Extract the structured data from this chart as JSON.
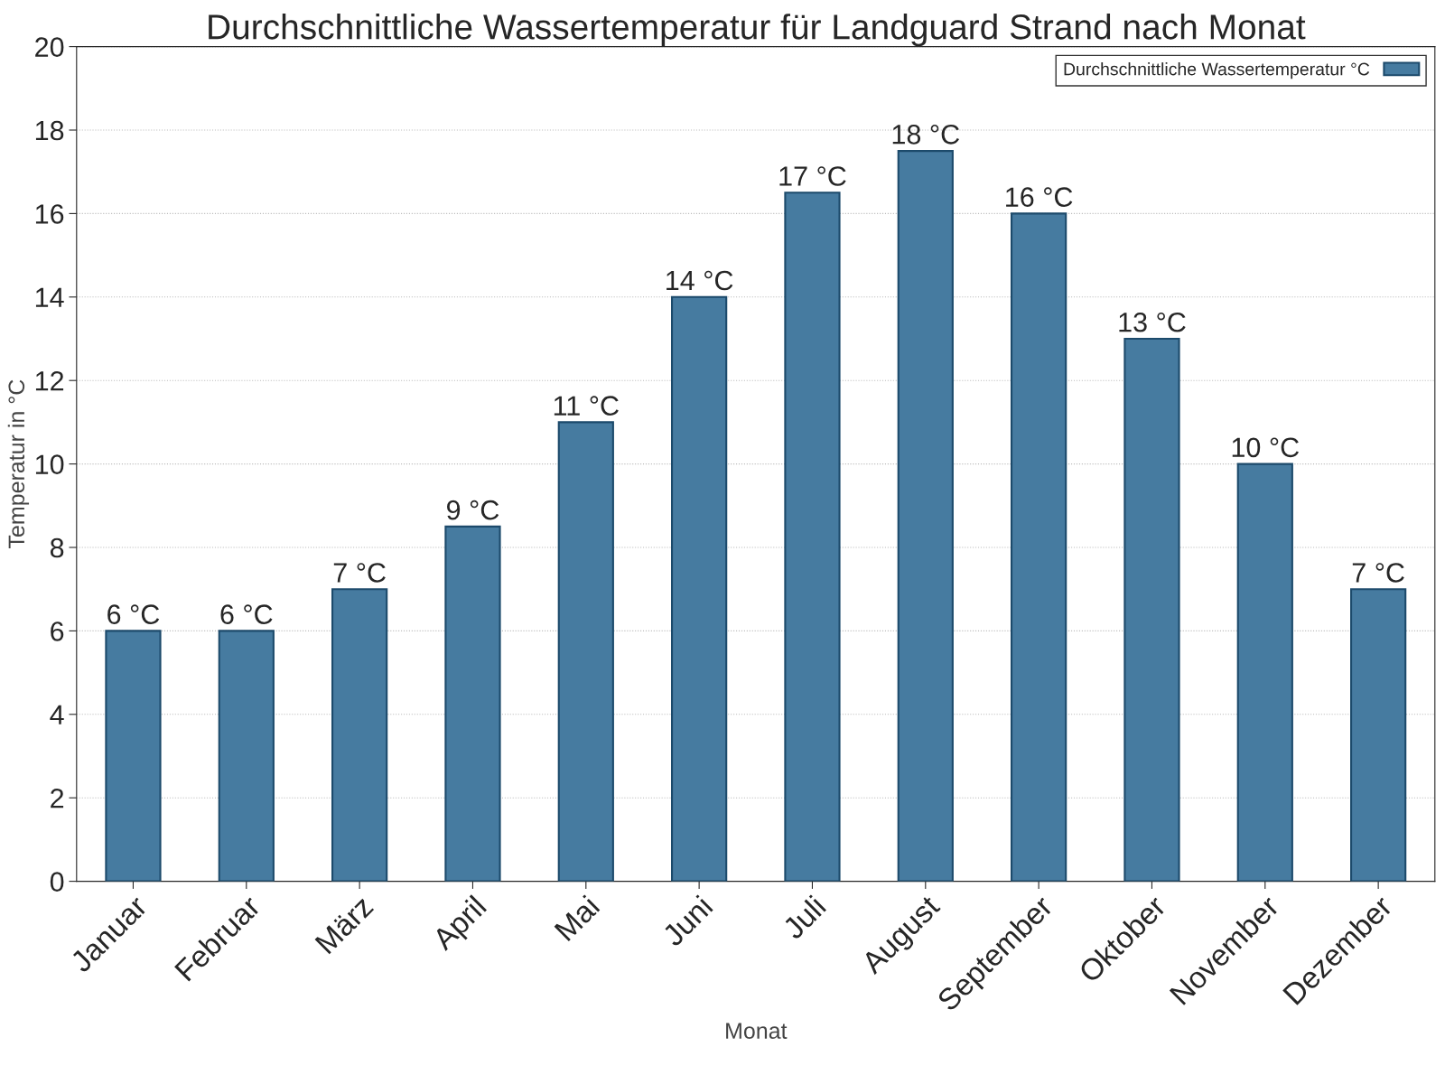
{
  "chart_data": {
    "type": "bar",
    "title": "Durchschnittliche Wassertemperatur für Landguard Strand nach Monat",
    "xlabel": "Monat",
    "ylabel": "Temperatur in °C",
    "categories": [
      "Januar",
      "Februar",
      "März",
      "April",
      "Mai",
      "Juni",
      "Juli",
      "August",
      "September",
      "Oktober",
      "November",
      "Dezember"
    ],
    "series": [
      {
        "name": "Durchschnittliche Wassertemperatur °C",
        "color": "#467ba0",
        "values": [
          6,
          6,
          7,
          8.5,
          11,
          14,
          16.5,
          17.5,
          16,
          13,
          10,
          7
        ],
        "value_labels": [
          "6 °C",
          "6 °C",
          "7 °C",
          "9 °C",
          "11 °C",
          "14 °C",
          "17 °C",
          "18 °C",
          "16 °C",
          "13 °C",
          "10 °C",
          "7 °C"
        ]
      }
    ],
    "ylim": [
      0,
      20
    ],
    "yticks": [
      0,
      2,
      4,
      6,
      8,
      10,
      12,
      14,
      16,
      18,
      20
    ],
    "grid": "y",
    "legend": "top right"
  }
}
